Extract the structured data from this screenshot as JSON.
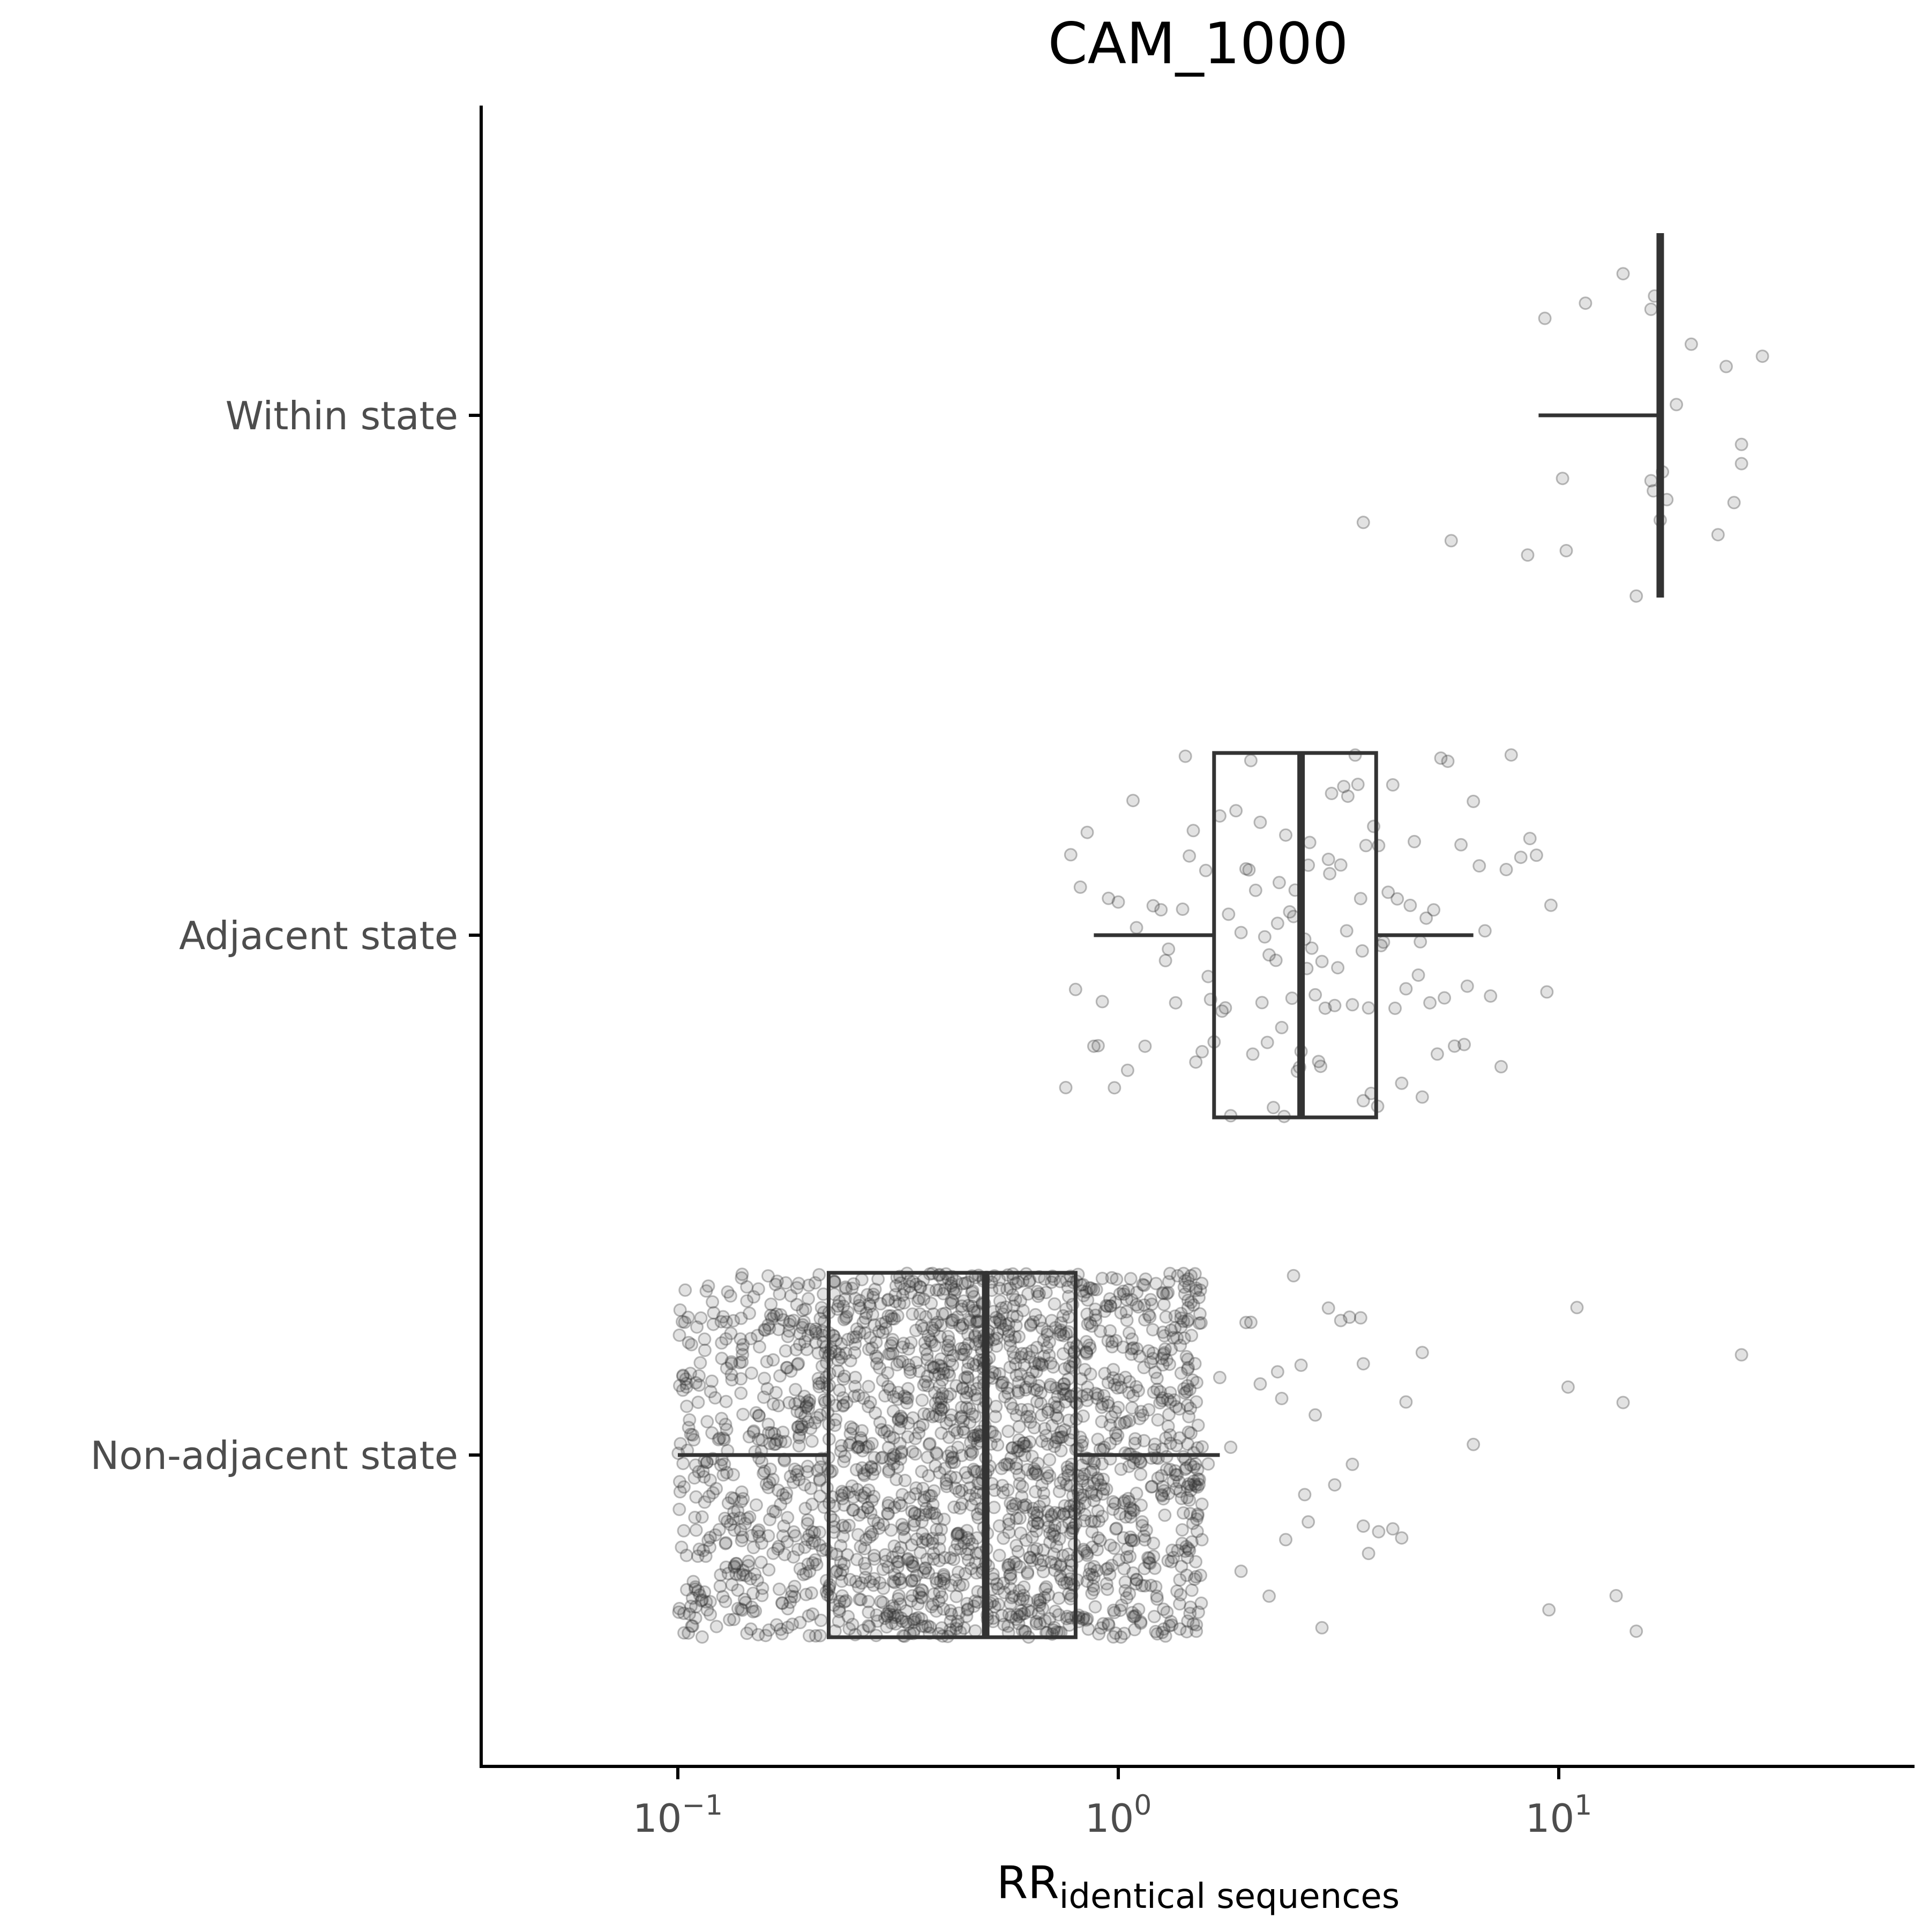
{
  "chart_data": {
    "type": "boxplot-jitter",
    "title": "CAM_1000",
    "xlabel_main": "RR",
    "xlabel_sub": "identical sequences",
    "ylabel": "",
    "x_scale": "log10",
    "xlim": [
      0.038,
      60
    ],
    "x_ticks": [
      {
        "value": 0.1,
        "base": "10",
        "exp": "−1"
      },
      {
        "value": 1,
        "base": "10",
        "exp": "0"
      },
      {
        "value": 10,
        "base": "10",
        "exp": "1"
      }
    ],
    "categories": [
      "Within state",
      "Adjacent state",
      "Non-adjacent state"
    ],
    "grid": false,
    "colors": {
      "points": "#333333",
      "box": "#333333",
      "axis": "#000000",
      "tick_label": "#4d4d4d"
    },
    "boxes": [
      {
        "category": "Within state",
        "whisker_low": 9.0,
        "q1": 17.0,
        "median": 17.0,
        "q3": 17.0,
        "whisker_high": 17.0
      },
      {
        "category": "Adjacent state",
        "whisker_low": 0.88,
        "q1": 1.65,
        "median": 2.6,
        "q3": 3.85,
        "whisker_high": 6.4
      },
      {
        "category": "Non-adjacent state",
        "whisker_low": 0.1,
        "q1": 0.22,
        "median": 0.5,
        "q3": 0.8,
        "whisker_high": 1.7
      }
    ],
    "points": {
      "Within state": [
        17.2,
        20.0,
        26.0,
        15.0,
        16.2,
        10.2,
        16.5,
        8.5,
        16.4,
        23.0,
        25.0,
        29.0,
        3.6,
        11.5,
        26.0,
        9.3,
        16.2,
        17.0,
        10.4,
        5.7,
        14.0,
        18.5,
        17.6,
        24.0
      ],
      "Adjacent state": [
        0.78,
        0.82,
        0.98,
        1.05,
        1.2,
        1.4,
        1.55,
        1.7,
        1.85,
        1.95,
        2.05,
        2.15,
        2.25,
        2.3,
        2.35,
        2.4,
        2.45,
        2.55,
        2.6,
        2.7,
        2.75,
        2.85,
        2.95,
        3.05,
        3.15,
        3.25,
        3.4,
        3.55,
        3.7,
        3.9,
        4.1,
        4.3,
        4.6,
        4.9,
        5.2,
        5.6,
        6.0,
        6.4,
        7.0,
        7.8,
        8.2,
        8.9,
        9.6,
        0.85,
        0.9,
        1.1,
        1.3,
        1.5,
        1.6,
        1.75,
        2.0,
        2.2,
        2.5,
        2.65,
        2.8,
        3.0,
        3.3,
        3.6,
        3.8,
        4.0,
        4.4,
        4.8,
        5.4,
        6.2,
        0.8,
        0.95,
        1.15,
        1.35,
        1.45,
        1.65,
        1.8,
        1.9,
        2.1,
        2.28,
        2.48,
        2.58,
        2.9,
        3.1,
        3.5,
        3.75,
        4.2,
        4.7,
        5.0,
        5.8,
        6.6,
        7.4,
        8.6,
        0.88,
        1.0,
        1.25,
        1.42,
        1.58,
        1.72,
        2.02,
        2.18,
        2.38,
        2.68,
        2.88,
        3.2,
        3.45,
        3.65,
        3.95,
        4.5,
        5.1,
        5.5,
        6.8,
        9.4,
        0.76,
        0.92,
        1.08,
        1.28,
        1.48,
        1.62,
        1.78,
        1.98,
        2.12,
        2.32,
        2.52,
        2.72,
        3.02,
        3.32,
        3.58,
        3.88,
        4.25,
        4.85,
        5.3,
        6.1,
        7.6
      ],
      "Non-adjacent_outliers": [
        1.55,
        1.8,
        2.0,
        2.2,
        2.35,
        2.5,
        2.65,
        2.8,
        3.0,
        3.2,
        3.35,
        3.55,
        3.7,
        3.9,
        4.2,
        4.5,
        4.9,
        6.4,
        9.5,
        10.5,
        11.0,
        13.5,
        14.0,
        15.0,
        26.0,
        3.6,
        3.1,
        2.9,
        2.6,
        2.4,
        2.1,
        1.9,
        1.7,
        1.6,
        4.4,
        3.4,
        3.6,
        2.7,
        2.3,
        1.95
      ],
      "Non-adjacent_bulk": {
        "range": [
          0.1,
          1.55
        ],
        "count": 2200,
        "note": "dense cloud"
      }
    }
  }
}
